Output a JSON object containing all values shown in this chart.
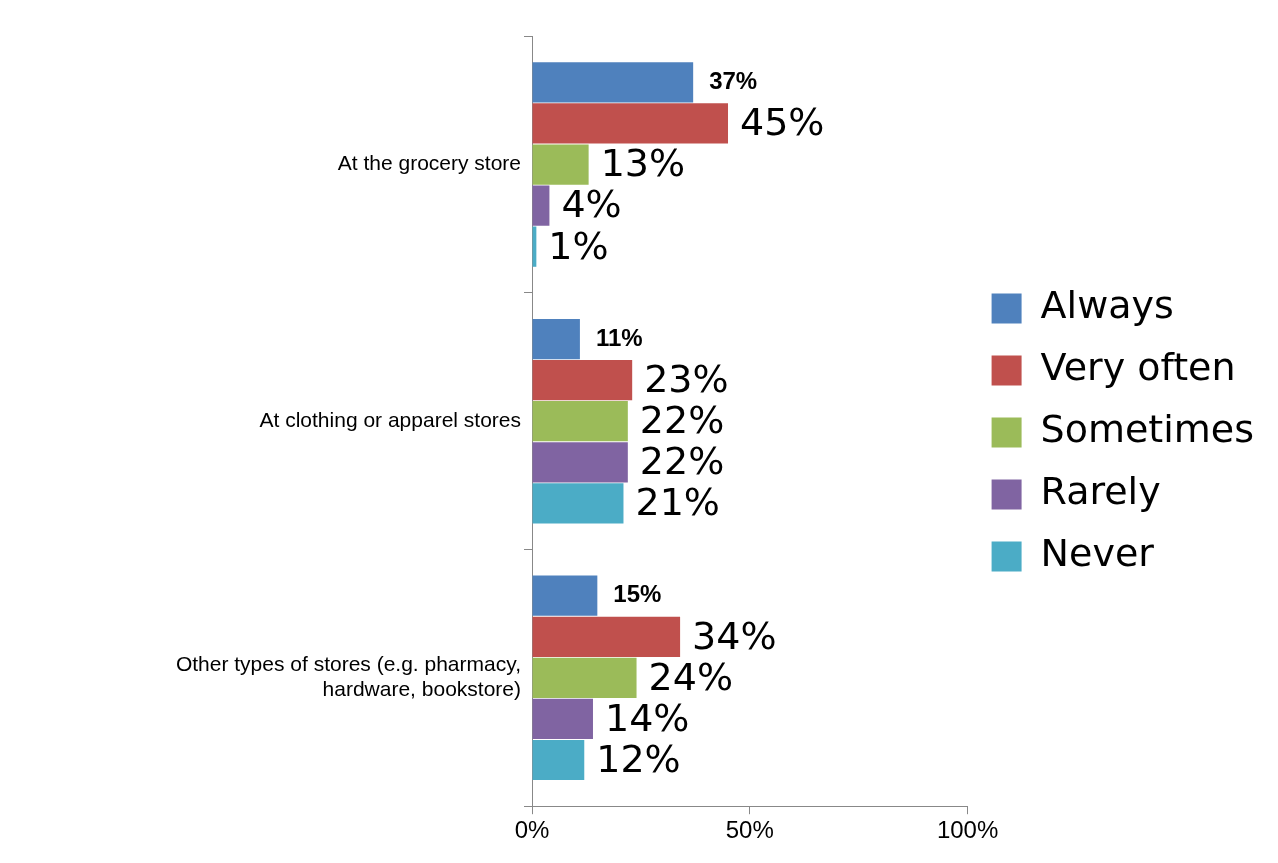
{
  "chart_data": {
    "type": "bar",
    "orientation": "horizontal",
    "categories": [
      "At the grocery store",
      "At clothing or apparel stores",
      "Other types of stores (e.g. pharmacy, hardware, bookstore)"
    ],
    "series": [
      {
        "name": "Always",
        "color": "#4f81bd",
        "values": [
          37,
          11,
          15
        ],
        "value_labels": [
          "37%",
          "11%",
          "15%"
        ]
      },
      {
        "name": "Very often",
        "color": "#c0504d",
        "values": [
          45,
          23,
          34
        ],
        "value_labels": [
          "45%",
          "23%",
          "34%"
        ]
      },
      {
        "name": "Sometimes",
        "color": "#9bbb59",
        "values": [
          13,
          22,
          24
        ],
        "value_labels": [
          "13%",
          "22%",
          "24%"
        ]
      },
      {
        "name": "Rarely",
        "color": "#8064a2",
        "values": [
          4,
          22,
          14
        ],
        "value_labels": [
          "4%",
          "22%",
          "14%"
        ]
      },
      {
        "name": "Never",
        "color": "#4bacc6",
        "values": [
          1,
          21,
          12
        ],
        "value_labels": [
          "1%",
          "21%",
          "12%"
        ]
      }
    ],
    "xlim": [
      0,
      100
    ],
    "xticks": [
      {
        "value": 0,
        "label": "0%"
      },
      {
        "value": 50,
        "label": "50%"
      },
      {
        "value": 100,
        "label": "100%"
      }
    ],
    "grid": false,
    "legend": "right"
  }
}
